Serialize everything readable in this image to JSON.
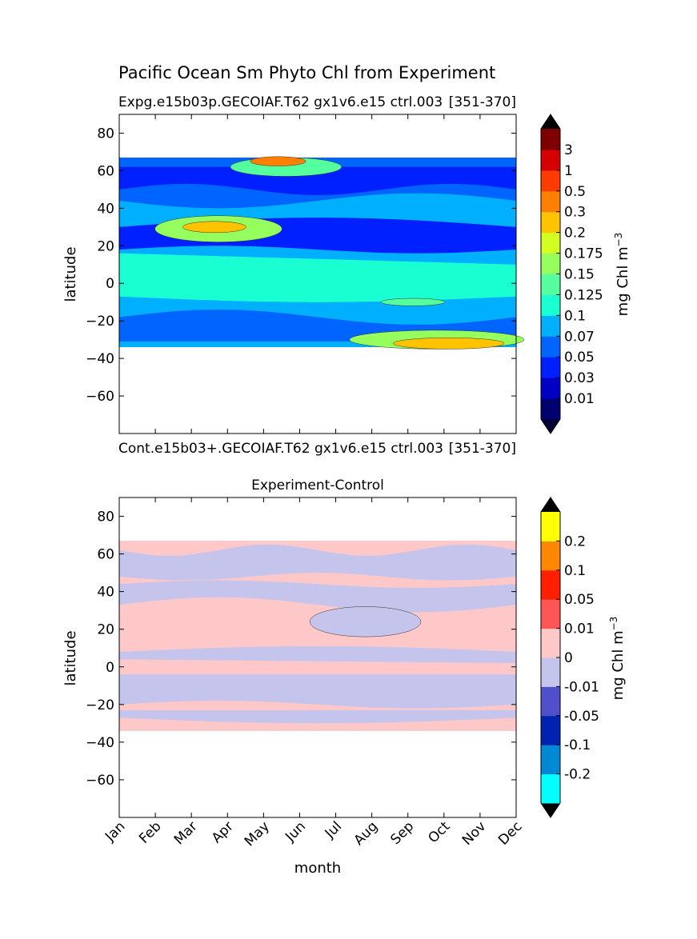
{
  "figure": {
    "suptitle": "Pacific Ocean Sm Phyto Chl from Experiment"
  },
  "chart_data": [
    {
      "type": "heatmap",
      "panel": "top",
      "title_left": "Expg.e15b03p.GECOIAF.T62 gx1v6.e15 ctrl.003",
      "title_right": "[351-370]",
      "xlabel": "",
      "ylabel": "latitude",
      "ylim": [
        -80,
        90
      ],
      "yticks": [
        80,
        60,
        40,
        20,
        0,
        -20,
        -40,
        -60
      ],
      "ytick_labels": [
        "80",
        "60",
        "40",
        "20",
        "0",
        "−20",
        "−40",
        "−60"
      ],
      "data_extent_lat": [
        -34,
        67
      ],
      "colorbar": {
        "label": "mg Chl m",
        "label_sup": "−3",
        "extend": "both",
        "extend_colors": {
          "low": "#000033",
          "high": "#000000"
        },
        "levels": [
          "0.01",
          "0.03",
          "0.05",
          "0.07",
          "0.1",
          "0.125",
          "0.15",
          "0.175",
          "0.2",
          "0.3",
          "0.5",
          "1",
          "3"
        ],
        "colors": [
          "#00006f",
          "#0000c4",
          "#0020ff",
          "#0064ff",
          "#00b0ff",
          "#19ffd2",
          "#55ff9e",
          "#95ff5e",
          "#d2ff21",
          "#ffc300",
          "#ff8000",
          "#ff3c00",
          "#d50000",
          "#800000"
        ]
      }
    },
    {
      "type": "heatmap",
      "panel": "bottom",
      "title_left": "Cont.e15b03+.GECOIAF.T62 gx1v6.e15 ctrl.003",
      "title_right": "[351-370]",
      "title_center": "Experiment-Control",
      "xlabel": "month",
      "ylabel": "latitude",
      "categories": [
        "Jan",
        "Feb",
        "Mar",
        "Apr",
        "May",
        "Jun",
        "Jul",
        "Aug",
        "Sep",
        "Oct",
        "Nov",
        "Dec"
      ],
      "ylim": [
        -80,
        90
      ],
      "yticks": [
        80,
        60,
        40,
        20,
        0,
        -20,
        -40,
        -60
      ],
      "ytick_labels": [
        "80",
        "60",
        "40",
        "20",
        "0",
        "−20",
        "−40",
        "−60"
      ],
      "data_extent_lat": [
        -34,
        67
      ],
      "colorbar": {
        "label": "mg Chl m",
        "label_sup": "−3",
        "extend": "both",
        "extend_colors": {
          "low": "#000000",
          "high": "#000000"
        },
        "levels": [
          "-0.2",
          "-0.1",
          "-0.05",
          "-0.01",
          "0",
          "0.01",
          "0.05",
          "0.1",
          "0.2"
        ],
        "colors": [
          "#00ffff",
          "#0088d4",
          "#0022b0",
          "#5050cc",
          "#c4c4ec",
          "#ffc8c8",
          "#ff5555",
          "#ff2000",
          "#ff8800",
          "#ffff00"
        ]
      }
    }
  ]
}
